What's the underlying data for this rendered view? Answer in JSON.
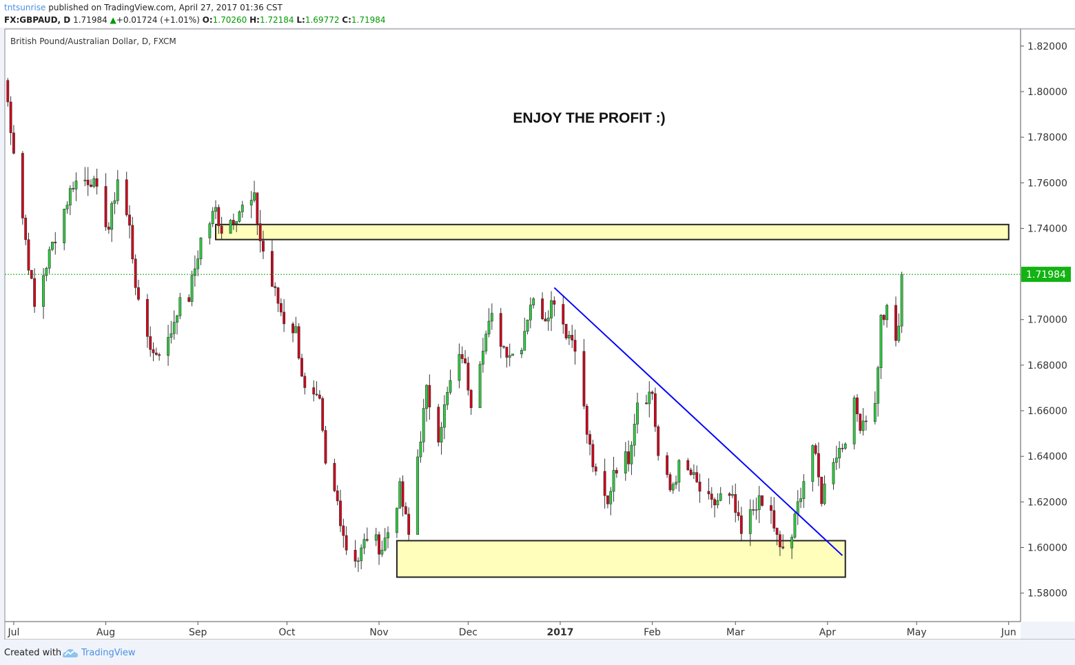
{
  "header": {
    "author": "tntsunrise",
    "published": "published on TradingView.com, April 27, 2017 01:36 CST",
    "symbol": "FX:GBPAUD, D",
    "last": "1.71984",
    "change": "+0.01724 (+1.01%)",
    "o_label": "O:",
    "o": "1.70260",
    "h_label": "H:",
    "h": "1.72184",
    "l_label": "L:",
    "l": "1.69772",
    "c_label": "C:",
    "c": "1.71984"
  },
  "footer": {
    "created_with": "Created with",
    "brand": "TradingView"
  },
  "colors": {
    "up": "#2ecc40",
    "down": "#d0021b",
    "trendline": "#0000ff",
    "zone_fill": "#ffffbb",
    "price_line": "#00aa00",
    "price_tag": "#12b312"
  },
  "chart_data": {
    "type": "candlestick",
    "title": "British Pound/Australian Dollar, D, FXCM",
    "annotation": "ENJOY THE PROFIT :)",
    "x_ticks": [
      "Jul",
      "Aug",
      "Sep",
      "Oct",
      "Nov",
      "Dec",
      "2017",
      "Feb",
      "Mar",
      "Apr",
      "May",
      "Jun"
    ],
    "y_ticks": [
      "1.82000",
      "1.80000",
      "1.78000",
      "1.76000",
      "1.74000",
      "1.72000",
      "1.70000",
      "1.68000",
      "1.66000",
      "1.64000",
      "1.62000",
      "1.60000",
      "1.58000"
    ],
    "ylim": [
      1.5675,
      1.8275
    ],
    "x_date_range": [
      "2016-06-28",
      "2017-06-05"
    ],
    "last_price": 1.71984,
    "last_price_label": "1.71984",
    "zones": [
      {
        "start": "2016-09-07",
        "end": "2017-06-01",
        "low": 1.7351,
        "high": 1.7417
      },
      {
        "start": "2016-11-07",
        "end": "2017-04-07",
        "low": 1.587,
        "high": 1.603
      }
    ],
    "trendline": {
      "start": {
        "date": "2016-12-30",
        "price": 1.714
      },
      "end": {
        "date": "2017-04-06",
        "price": 1.5965
      }
    },
    "waypoints": [
      [
        "2016-06-28",
        1.805
      ],
      [
        "2016-07-04",
        1.745
      ],
      [
        "2016-07-08",
        1.705
      ],
      [
        "2016-07-11",
        1.72
      ],
      [
        "2016-07-15",
        1.737
      ],
      [
        "2016-07-21",
        1.76
      ],
      [
        "2016-07-27",
        1.762
      ],
      [
        "2016-08-02",
        1.74
      ],
      [
        "2016-08-05",
        1.762
      ],
      [
        "2016-08-09",
        1.74
      ],
      [
        "2016-08-12",
        1.705
      ],
      [
        "2016-08-17",
        1.685
      ],
      [
        "2016-08-22",
        1.69
      ],
      [
        "2016-08-25",
        1.705
      ],
      [
        "2016-08-29",
        1.71
      ],
      [
        "2016-09-02",
        1.735
      ],
      [
        "2016-09-07",
        1.748
      ],
      [
        "2016-09-09",
        1.74
      ],
      [
        "2016-09-15",
        1.748
      ],
      [
        "2016-09-20",
        1.752
      ],
      [
        "2016-09-22",
        1.735
      ],
      [
        "2016-09-26",
        1.715
      ],
      [
        "2016-09-30",
        1.7
      ],
      [
        "2016-10-04",
        1.695
      ],
      [
        "2016-10-07",
        1.668
      ],
      [
        "2016-10-12",
        1.662
      ],
      [
        "2016-10-14",
        1.635
      ],
      [
        "2016-10-18",
        1.62
      ],
      [
        "2016-10-21",
        1.6
      ],
      [
        "2016-10-25",
        1.595
      ],
      [
        "2016-10-28",
        1.605
      ],
      [
        "2016-11-02",
        1.6
      ],
      [
        "2016-11-04",
        1.607
      ],
      [
        "2016-11-08",
        1.625
      ],
      [
        "2016-11-11",
        1.605
      ],
      [
        "2016-11-14",
        1.64
      ],
      [
        "2016-11-17",
        1.668
      ],
      [
        "2016-11-21",
        1.65
      ],
      [
        "2016-11-25",
        1.672
      ],
      [
        "2016-11-29",
        1.685
      ],
      [
        "2016-12-02",
        1.665
      ],
      [
        "2016-12-06",
        1.69
      ],
      [
        "2016-12-09",
        1.7
      ],
      [
        "2016-12-13",
        1.688
      ],
      [
        "2016-12-16",
        1.685
      ],
      [
        "2016-12-19",
        1.69
      ],
      [
        "2016-12-22",
        1.708
      ],
      [
        "2016-12-27",
        1.702
      ],
      [
        "2016-12-30",
        1.71
      ],
      [
        "2017-01-03",
        1.695
      ],
      [
        "2017-01-06",
        1.69
      ],
      [
        "2017-01-10",
        1.65
      ],
      [
        "2017-01-13",
        1.63
      ],
      [
        "2017-01-17",
        1.618
      ],
      [
        "2017-01-19",
        1.635
      ],
      [
        "2017-01-24",
        1.64
      ],
      [
        "2017-01-27",
        1.665
      ],
      [
        "2017-02-01",
        1.668
      ],
      [
        "2017-02-03",
        1.64
      ],
      [
        "2017-02-07",
        1.625
      ],
      [
        "2017-02-10",
        1.635
      ],
      [
        "2017-02-14",
        1.632
      ],
      [
        "2017-02-17",
        1.625
      ],
      [
        "2017-02-21",
        1.618
      ],
      [
        "2017-02-24",
        1.622
      ],
      [
        "2017-02-28",
        1.62
      ],
      [
        "2017-03-03",
        1.605
      ],
      [
        "2017-03-08",
        1.62
      ],
      [
        "2017-03-13",
        1.615
      ],
      [
        "2017-03-16",
        1.598
      ],
      [
        "2017-03-20",
        1.605
      ],
      [
        "2017-03-23",
        1.625
      ],
      [
        "2017-03-27",
        1.645
      ],
      [
        "2017-03-30",
        1.622
      ],
      [
        "2017-04-03",
        1.64
      ],
      [
        "2017-04-06",
        1.645
      ],
      [
        "2017-04-10",
        1.662
      ],
      [
        "2017-04-12",
        1.655
      ],
      [
        "2017-04-17",
        1.662
      ],
      [
        "2017-04-19",
        1.7
      ],
      [
        "2017-04-21",
        1.703
      ],
      [
        "2017-04-24",
        1.69
      ],
      [
        "2017-04-25",
        1.698
      ],
      [
        "2017-04-26",
        1.7198
      ]
    ]
  }
}
